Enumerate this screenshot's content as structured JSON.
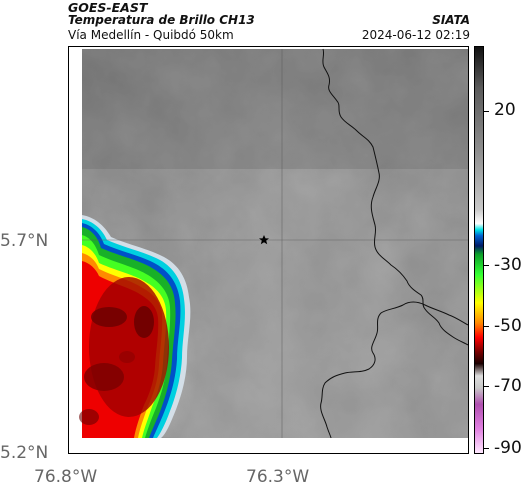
{
  "header": {
    "satellite": "GOES-EAST",
    "product": "Temperatura de Brillo CH13",
    "organization": "SIATA",
    "area": "Vía Medellín - Quibdó 50km",
    "datetime": "2024-06-12 02:19"
  },
  "axes": {
    "lat_labels": [
      "5.7°N",
      "5.2°N"
    ],
    "lon_labels": [
      "76.8°W",
      "76.3°W"
    ]
  },
  "colorbar": {
    "labels": [
      "20",
      "-30",
      "-50",
      "-70",
      "-90"
    ]
  },
  "marker": {
    "type": "star",
    "icon": "star-marker-icon"
  }
}
